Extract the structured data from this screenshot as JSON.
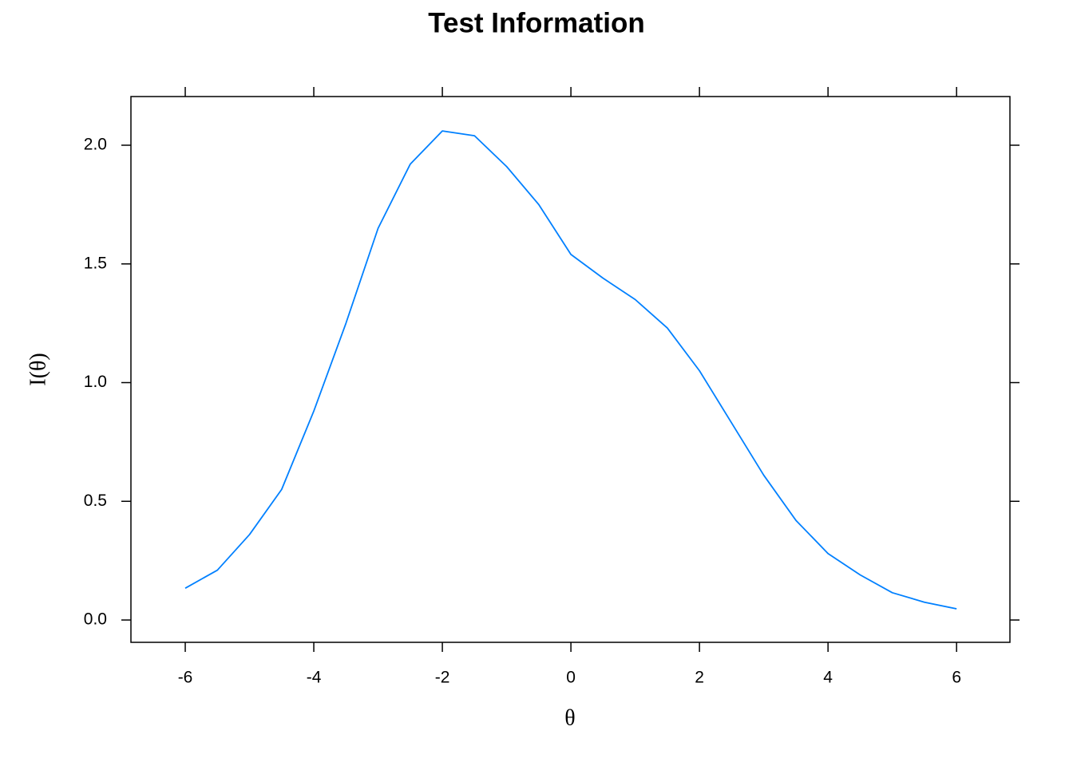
{
  "chart_data": {
    "type": "line",
    "title": "Test Information",
    "x_label": "θ",
    "y_label": "I(θ)",
    "x": [
      -6,
      -5.5,
      -5,
      -4.5,
      -4,
      -3.5,
      -3,
      -2.5,
      -2,
      -1.5,
      -1,
      -0.5,
      0,
      0.5,
      1,
      1.5,
      2,
      2.5,
      3,
      3.5,
      4,
      4.5,
      5,
      5.5,
      6
    ],
    "series": [
      {
        "name": "Test Information",
        "color": "#0080ff",
        "values": [
          0.134,
          0.21,
          0.36,
          0.55,
          0.88,
          1.25,
          1.65,
          1.92,
          2.06,
          2.04,
          1.91,
          1.75,
          1.54,
          1.44,
          1.35,
          1.23,
          1.05,
          0.83,
          0.61,
          0.42,
          0.28,
          0.19,
          0.115,
          0.075,
          0.047
        ]
      }
    ],
    "xlim": [
      -6.845,
      6.83
    ],
    "ylim": [
      -0.094,
      2.205
    ],
    "xticks": [
      -6,
      -4,
      -2,
      0,
      2,
      4,
      6
    ],
    "yticks": [
      {
        "value": 0,
        "label": "0.0"
      },
      0.5,
      {
        "value": 1,
        "label": "1.0"
      },
      1.5,
      {
        "value": 2,
        "label": "2.0"
      }
    ],
    "grid": false
  }
}
